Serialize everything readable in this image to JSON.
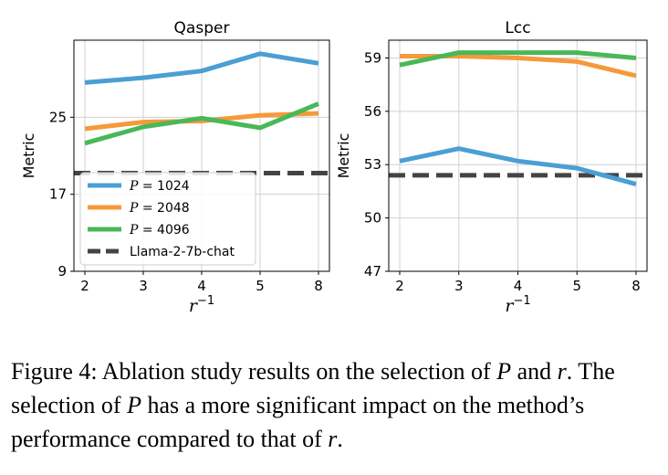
{
  "chart_data": [
    {
      "type": "line",
      "title": "Qasper",
      "xlabel": "r−1",
      "ylabel": "Metric",
      "categories": [
        "2",
        "3",
        "4",
        "5",
        "8"
      ],
      "ylim": [
        9,
        33
      ],
      "yticks": [
        "9",
        "17",
        "25"
      ],
      "grid": true,
      "legend": "lower-left",
      "series": [
        {
          "name": "P = 1024",
          "color": "#4a9fd4",
          "values": [
            28.6,
            29.1,
            29.8,
            31.6,
            30.6
          ]
        },
        {
          "name": "P = 2048",
          "color": "#f59a3b",
          "values": [
            23.8,
            24.5,
            24.6,
            25.2,
            25.4
          ]
        },
        {
          "name": "P = 4096",
          "color": "#49b857",
          "values": [
            22.3,
            24.0,
            24.9,
            23.9,
            26.4
          ]
        }
      ],
      "baseline": {
        "name": "Llama-2-7b-chat",
        "color": "#444444",
        "value": 19.2
      }
    },
    {
      "type": "line",
      "title": "Lcc",
      "xlabel": "r−1",
      "ylabel": "Metric",
      "categories": [
        "2",
        "3",
        "4",
        "5",
        "8"
      ],
      "ylim": [
        47,
        60
      ],
      "yticks": [
        "47",
        "50",
        "53",
        "56",
        "59"
      ],
      "grid": true,
      "series": [
        {
          "name": "P = 1024",
          "color": "#4a9fd4",
          "values": [
            53.2,
            53.9,
            53.2,
            52.8,
            51.9
          ]
        },
        {
          "name": "P = 2048",
          "color": "#f59a3b",
          "values": [
            59.1,
            59.1,
            59.0,
            58.8,
            58.0
          ]
        },
        {
          "name": "P = 4096",
          "color": "#49b857",
          "values": [
            58.6,
            59.3,
            59.3,
            59.3,
            59.0
          ]
        }
      ],
      "baseline": {
        "name": "Llama-2-7b-chat",
        "color": "#444444",
        "value": 52.4
      }
    }
  ],
  "legend": {
    "entries": [
      {
        "prefix": "P",
        "suffix": " = 1024",
        "color": "#4a9fd4"
      },
      {
        "prefix": "P",
        "suffix": " = 2048",
        "color": "#f59a3b"
      },
      {
        "prefix": "P",
        "suffix": " = 4096",
        "color": "#49b857"
      },
      {
        "prefix": "",
        "suffix": "Llama-2-7b-chat",
        "color": "#444444"
      }
    ]
  },
  "caption": {
    "label": "Figure 4:",
    "text_1": " Ablation study results on the selection of ",
    "var_p1": "P",
    "text_2": " and ",
    "var_r1": "r",
    "text_3": ". The selection of ",
    "var_p2": "P",
    "text_4": " has a more significant impact on the method’s performance compared to that of ",
    "var_r2": "r",
    "text_5": "."
  }
}
